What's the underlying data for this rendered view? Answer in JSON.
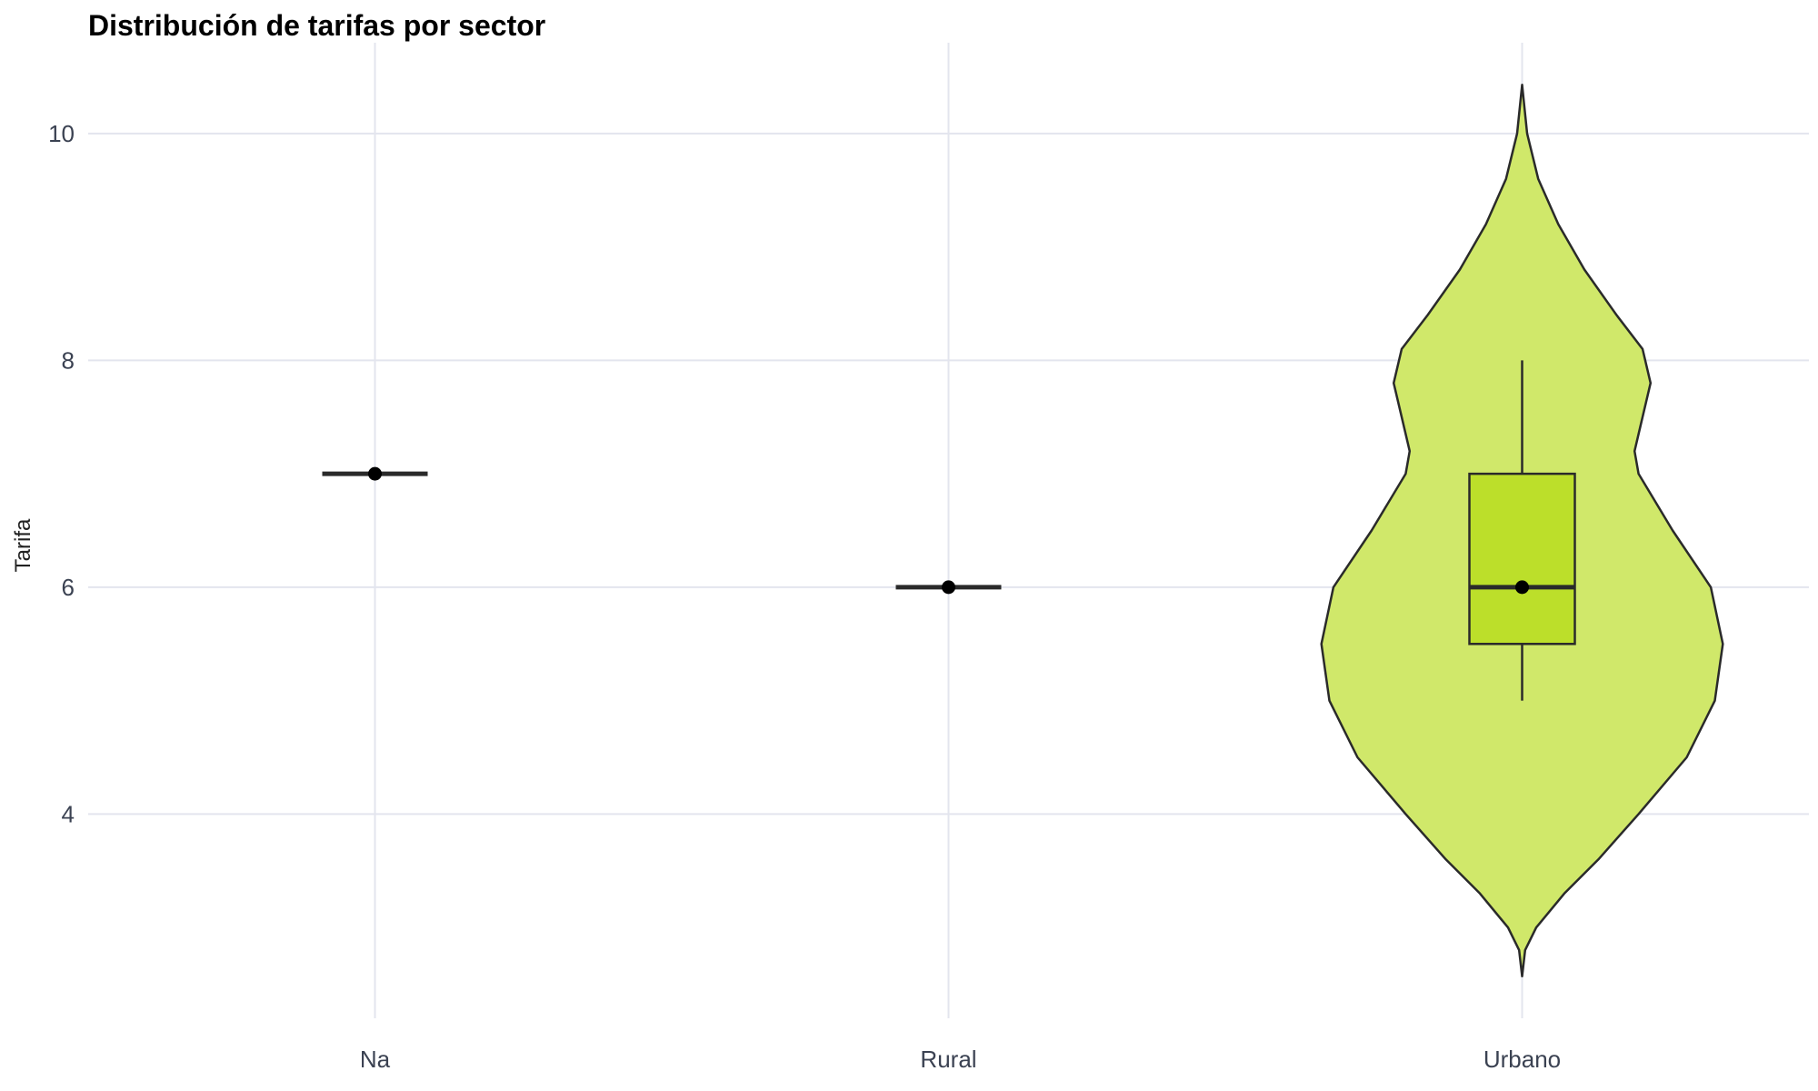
{
  "chart_data": {
    "type": "violin",
    "title": "Distribución de tarifas por sector",
    "xlabel": "",
    "ylabel": "Tarifa",
    "ylim": [
      2.2,
      10.8
    ],
    "y_ticks": [
      4,
      6,
      8,
      10
    ],
    "grid": true,
    "legend": "none",
    "categories": [
      "Na",
      "Rural",
      "Urbano"
    ],
    "groups": [
      {
        "category": "Na",
        "median": 7,
        "q1": 7,
        "q3": 7,
        "min": 7,
        "max": 7,
        "density": []
      },
      {
        "category": "Rural",
        "median": 6,
        "q1": 6,
        "q3": 6,
        "min": 6,
        "max": 6,
        "density": []
      },
      {
        "category": "Urbano",
        "median": 6,
        "q1": 5.5,
        "q3": 7,
        "min": 5,
        "max": 8,
        "density": [
          [
            2.57,
            0.0
          ],
          [
            2.8,
            0.015
          ],
          [
            3.0,
            0.07
          ],
          [
            3.3,
            0.21
          ],
          [
            3.6,
            0.38
          ],
          [
            4.0,
            0.58
          ],
          [
            4.5,
            0.82
          ],
          [
            5.0,
            0.96
          ],
          [
            5.5,
            1.0
          ],
          [
            6.0,
            0.94
          ],
          [
            6.5,
            0.75
          ],
          [
            7.0,
            0.58
          ],
          [
            7.2,
            0.56
          ],
          [
            7.5,
            0.6
          ],
          [
            7.8,
            0.64
          ],
          [
            8.1,
            0.6
          ],
          [
            8.4,
            0.47
          ],
          [
            8.8,
            0.31
          ],
          [
            9.2,
            0.18
          ],
          [
            9.6,
            0.08
          ],
          [
            10.0,
            0.025
          ],
          [
            10.43,
            0.0
          ]
        ]
      }
    ]
  },
  "colors": {
    "violin_fill": "#d0e86a",
    "box_fill": "#bcdf2a",
    "outline": "#2a2a2a",
    "grid": "#e3e5ee",
    "point": "#000000"
  }
}
